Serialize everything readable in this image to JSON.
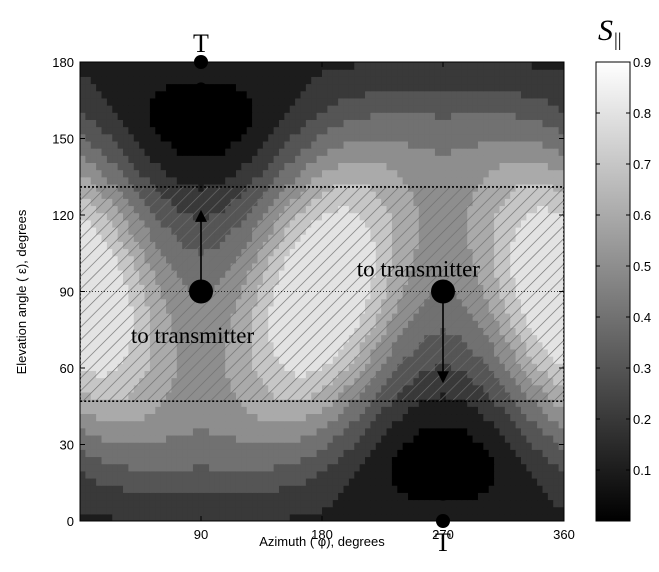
{
  "chart_data": {
    "type": "heatmap",
    "title": "",
    "xlabel": "Azimuth ( φ), degrees",
    "ylabel": "Elevation angle ( ε), degrees",
    "xlim": [
      0,
      360
    ],
    "ylim": [
      0,
      180
    ],
    "x_ticks": [
      "90",
      "180",
      "270",
      "360"
    ],
    "y_ticks": [
      "0",
      "30",
      "60",
      "90",
      "120",
      "150",
      "180"
    ],
    "colorbar": {
      "label": "S",
      "label_subscript": "||",
      "range": [
        0,
        0.9
      ],
      "ticks": [
        "0.1",
        "0.2",
        "0.3",
        "0.4",
        "0.5",
        "0.6",
        "0.7",
        "0.8",
        "0.9"
      ],
      "colormap": "gray"
    },
    "contour_levels": [
      0.1,
      0.2,
      0.3,
      0.4,
      0.5,
      0.6,
      0.7,
      0.8,
      0.9
    ],
    "shaded_region": {
      "x": [
        0,
        360
      ],
      "y": [
        47,
        131
      ],
      "pattern": "diagonal-hatch",
      "border": "dotted"
    },
    "center_line_y": 90,
    "markers": [
      {
        "label": "T",
        "x": 90,
        "y": 180,
        "position": "top"
      },
      {
        "label": "T",
        "x": 270,
        "y": 0,
        "position": "bottom"
      }
    ],
    "dark_spots": [
      {
        "x": 90,
        "y": 158
      },
      {
        "x": 270,
        "y": 22
      }
    ],
    "points": [
      {
        "x": 90,
        "y": 90
      },
      {
        "x": 270,
        "y": 90
      }
    ],
    "arrows": [
      {
        "from": [
          90,
          90
        ],
        "to": [
          90,
          122
        ]
      },
      {
        "from": [
          270,
          90
        ],
        "to": [
          270,
          54
        ]
      }
    ],
    "annotations": [
      {
        "text": "to transmitter",
        "x": 75,
        "y": 73
      },
      {
        "text": "to transmitter",
        "x": 243,
        "y": 99
      }
    ]
  }
}
